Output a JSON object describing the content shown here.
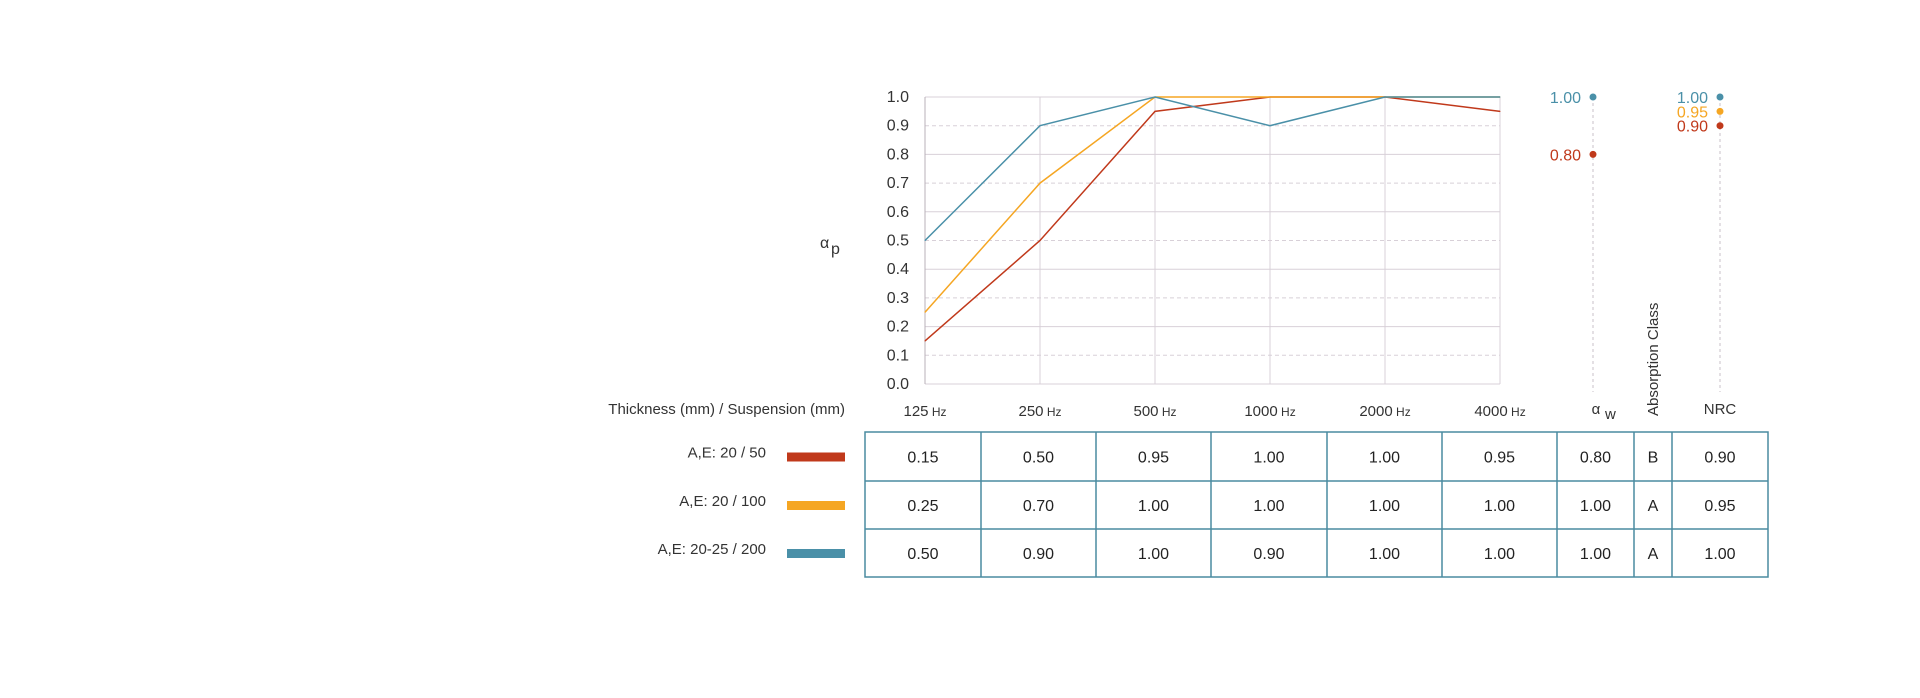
{
  "chart_data": {
    "type": "line",
    "ylabel": "α",
    "ylabel_sub": "p",
    "ylim": [
      0,
      1.0
    ],
    "yticks": [
      "0.0",
      "0.1",
      "0.2",
      "0.3",
      "0.4",
      "0.5",
      "0.6",
      "0.7",
      "0.8",
      "0.9",
      "1.0"
    ],
    "categories": [
      {
        "num": "125",
        "unit": "Hz"
      },
      {
        "num": "250",
        "unit": "Hz"
      },
      {
        "num": "500",
        "unit": "Hz"
      },
      {
        "num": "1000",
        "unit": "Hz"
      },
      {
        "num": "2000",
        "unit": "Hz"
      },
      {
        "num": "4000",
        "unit": "Hz"
      }
    ],
    "grid": true,
    "series": [
      {
        "name": "A,E: 20 / 50",
        "color": "#c0391b",
        "values": [
          0.15,
          0.5,
          0.95,
          1.0,
          1.0,
          0.95
        ]
      },
      {
        "name": "A,E: 20 / 100",
        "color": "#f5a623",
        "values": [
          0.25,
          0.7,
          1.0,
          1.0,
          1.0,
          1.0
        ]
      },
      {
        "name": "A,E: 20-25 / 200",
        "color": "#4a90a8",
        "values": [
          0.5,
          0.9,
          1.0,
          0.9,
          1.0,
          1.0
        ]
      }
    ],
    "aw_label": "α",
    "aw_sub": "w",
    "aw_points": [
      {
        "label": "1.00",
        "value": 1.0,
        "color": "#4a90a8"
      },
      {
        "label": "0.80",
        "value": 0.8,
        "color": "#c0391b"
      }
    ],
    "absorption_class_label": "Absorption Class",
    "nrc_label": "NRC",
    "nrc_points": [
      {
        "label": "1.00",
        "value": 1.0,
        "color": "#4a90a8"
      },
      {
        "label": "0.95",
        "value": 0.95,
        "color": "#f5a623"
      },
      {
        "label": "0.90",
        "value": 0.9,
        "color": "#c0391b"
      }
    ],
    "table_header": "Thickness (mm) / Suspension (mm)",
    "table_rows": [
      {
        "label": "A,E: 20 / 50",
        "color": "#c0391b",
        "cells": [
          "0.15",
          "0.50",
          "0.95",
          "1.00",
          "1.00",
          "0.95"
        ],
        "aw": "0.80",
        "cls": "B",
        "nrc": "0.90"
      },
      {
        "label": "A,E: 20 / 100",
        "color": "#f5a623",
        "cells": [
          "0.25",
          "0.70",
          "1.00",
          "1.00",
          "1.00",
          "1.00"
        ],
        "aw": "1.00",
        "cls": "A",
        "nrc": "0.95"
      },
      {
        "label": "A,E: 20-25 / 200",
        "color": "#4a90a8",
        "cells": [
          "0.50",
          "0.90",
          "1.00",
          "0.90",
          "1.00",
          "1.00"
        ],
        "aw": "1.00",
        "cls": "A",
        "nrc": "1.00"
      }
    ],
    "colors": {
      "grid": "#d8d0d8",
      "table_border": "#4a8ba0"
    }
  }
}
